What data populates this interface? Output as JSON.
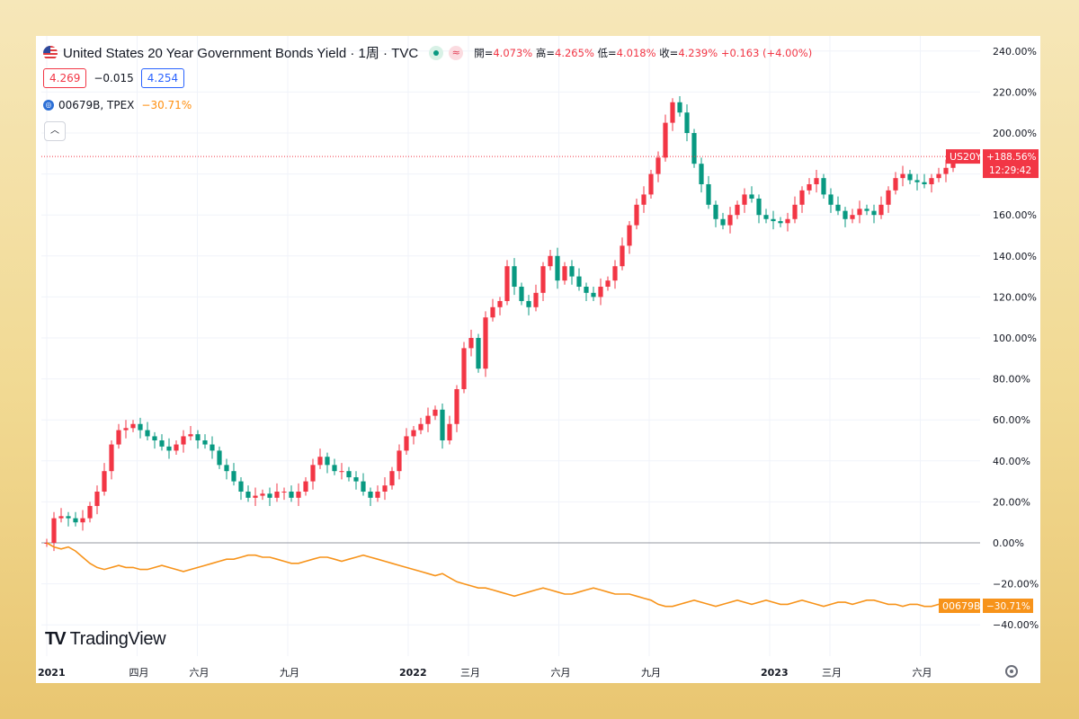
{
  "header": {
    "title": "United States 20 Year Government Bonds Yield · 1周 · TVC",
    "status_icon": "market-open-dot",
    "approx_icon": "≈",
    "ohlc": {
      "open_label": "開=",
      "open": "4.073%",
      "high_label": "高=",
      "high": "4.265%",
      "low_label": "低=",
      "low": "4.018%",
      "close_label": "收=",
      "close": "4.239%",
      "change": "+0.163 (+4.00%)"
    },
    "bid": "4.269",
    "spread": "−0.015",
    "ask": "4.254",
    "compare_symbol": "00679B, TPEX",
    "compare_change": "−30.71%",
    "collapse_icon": "chevron-up-icon"
  },
  "brand": {
    "name": "TradingView"
  },
  "colors": {
    "up": "#f23645",
    "down": "#089981",
    "compare_line": "#f7931a",
    "grid": "#f0f3fa",
    "axis_text": "#131722"
  },
  "chart_data": {
    "type": "line",
    "ylabel": "",
    "xlabel": "",
    "y_unit": "percent change",
    "ylim": [
      -45,
      245
    ],
    "x_range": [
      "2021-01",
      "2023-07"
    ],
    "y_ticks": [
      "240.00%",
      "220.00%",
      "200.00%",
      "180.00%",
      "160.00%",
      "140.00%",
      "120.00%",
      "100.00%",
      "80.00%",
      "60.00%",
      "40.00%",
      "20.00%",
      "0.00%",
      "−20.00%",
      "−40.00%"
    ],
    "y_tick_values": [
      240,
      220,
      200,
      180,
      160,
      140,
      120,
      100,
      80,
      60,
      40,
      20,
      0,
      -20,
      -40
    ],
    "x_ticks": [
      {
        "label": "2021",
        "date": "2021-01",
        "bold": true
      },
      {
        "label": "四月",
        "date": "2021-04",
        "bold": false
      },
      {
        "label": "六月",
        "date": "2021-06",
        "bold": false
      },
      {
        "label": "九月",
        "date": "2021-09",
        "bold": false
      },
      {
        "label": "2022",
        "date": "2022-01",
        "bold": true
      },
      {
        "label": "三月",
        "date": "2022-03",
        "bold": false
      },
      {
        "label": "六月",
        "date": "2022-06",
        "bold": false
      },
      {
        "label": "九月",
        "date": "2022-09",
        "bold": false
      },
      {
        "label": "2023",
        "date": "2023-01",
        "bold": true
      },
      {
        "label": "三月",
        "date": "2023-03",
        "bold": false
      },
      {
        "label": "六月",
        "date": "2023-06",
        "bold": false
      }
    ],
    "grid": true,
    "series": [
      {
        "name": "US20Y",
        "kind": "candlestick",
        "last_label": "US20Y",
        "last_value": "+188.56%",
        "countdown": "12:29:42",
        "last_price_line": 188.56,
        "close_values": [
          0,
          12,
          13,
          12,
          10,
          12,
          18,
          25,
          35,
          48,
          55,
          56,
          58,
          55,
          52,
          50,
          47,
          45,
          48,
          52,
          53,
          50,
          48,
          45,
          38,
          35,
          30,
          25,
          22,
          23,
          24,
          22,
          25,
          25,
          22,
          25,
          30,
          38,
          42,
          38,
          35,
          35,
          32,
          30,
          25,
          22,
          25,
          28,
          35,
          45,
          52,
          55,
          58,
          62,
          65,
          50,
          58,
          75,
          95,
          100,
          85,
          110,
          115,
          118,
          135,
          125,
          118,
          115,
          122,
          135,
          140,
          128,
          135,
          130,
          125,
          122,
          120,
          125,
          128,
          135,
          145,
          155,
          165,
          170,
          180,
          188,
          205,
          215,
          210,
          200,
          185,
          175,
          165,
          158,
          155,
          160,
          165,
          170,
          168,
          160,
          158,
          157,
          156,
          158,
          165,
          172,
          175,
          178,
          170,
          165,
          162,
          158,
          160,
          163,
          162,
          160,
          165,
          172,
          178,
          180,
          177,
          176,
          175,
          178,
          180,
          183,
          188.56
        ]
      },
      {
        "name": "00679B",
        "kind": "line",
        "last_label": "00679B",
        "last_value": "−30.71%",
        "values": [
          0,
          -2,
          -3,
          -2,
          -4,
          -7,
          -10,
          -12,
          -13,
          -12,
          -11,
          -12,
          -12,
          -13,
          -13,
          -12,
          -11,
          -12,
          -13,
          -14,
          -13,
          -12,
          -11,
          -10,
          -9,
          -8,
          -8,
          -7,
          -6,
          -6,
          -7,
          -7,
          -8,
          -9,
          -10,
          -10,
          -9,
          -8,
          -7,
          -7,
          -8,
          -9,
          -8,
          -7,
          -6,
          -7,
          -8,
          -9,
          -10,
          -11,
          -12,
          -13,
          -14,
          -15,
          -16,
          -15,
          -17,
          -19,
          -20,
          -21,
          -22,
          -22,
          -23,
          -24,
          -25,
          -26,
          -25,
          -24,
          -23,
          -22,
          -23,
          -24,
          -25,
          -25,
          -24,
          -23,
          -22,
          -23,
          -24,
          -25,
          -25,
          -25,
          -26,
          -27,
          -28,
          -30,
          -31,
          -31,
          -30,
          -29,
          -28,
          -29,
          -30,
          -31,
          -30,
          -29,
          -28,
          -29,
          -30,
          -29,
          -28,
          -29,
          -30,
          -30,
          -29,
          -28,
          -29,
          -30,
          -31,
          -30,
          -29,
          -29,
          -30,
          -29,
          -28,
          -28,
          -29,
          -30,
          -30,
          -31,
          -30,
          -30,
          -31,
          -31,
          -30,
          -30,
          -30.71
        ]
      }
    ]
  }
}
